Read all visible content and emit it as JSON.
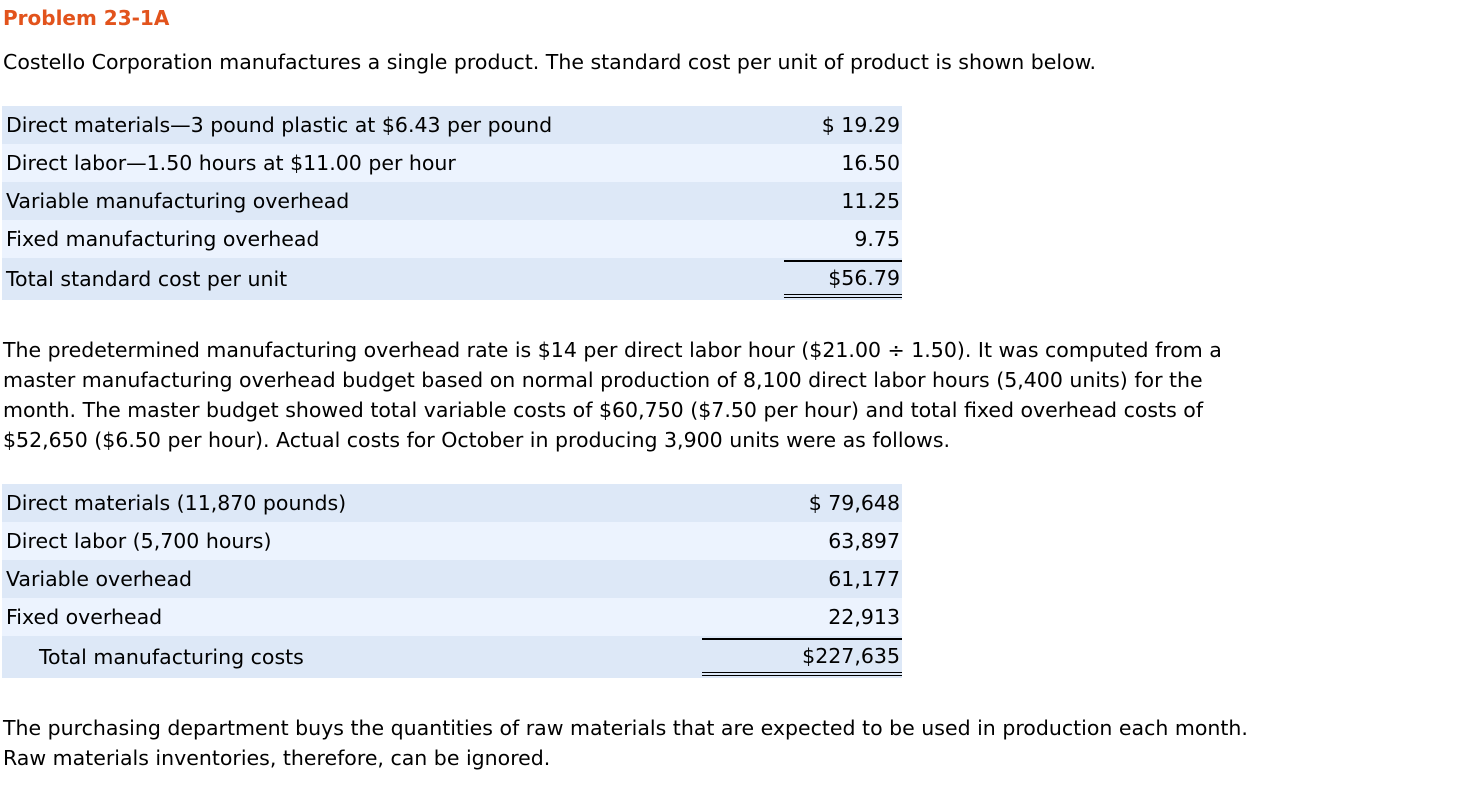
{
  "header": {
    "title": "Problem 23-1A"
  },
  "intro": "Costello Corporation manufactures a single product. The standard cost per unit of product is shown below.",
  "standard_cost_table": {
    "rows": [
      {
        "label": "Direct materials—3 pound plastic at $6.43 per pound",
        "amount": "$ 19.29"
      },
      {
        "label": "Direct labor—1.50 hours at $11.00 per hour",
        "amount": "16.50"
      },
      {
        "label": "Variable manufacturing overhead",
        "amount": "11.25"
      },
      {
        "label": "Fixed manufacturing overhead",
        "amount": "9.75"
      }
    ],
    "total": {
      "label": "Total standard cost per unit",
      "amount": "$56.79"
    }
  },
  "overhead_paragraph": {
    "lines": [
      "The predetermined manufacturing overhead rate is $14 per direct labor hour ($21.00 ÷ 1.50). It was computed from a",
      "master manufacturing overhead budget based on normal production of 8,100 direct labor hours (5,400 units) for the",
      "month. The master budget showed total variable costs of $60,750 ($7.50 per hour) and total fixed overhead costs of",
      "$52,650 ($6.50 per hour). Actual costs for October in producing 3,900 units were as follows."
    ]
  },
  "actual_cost_table": {
    "rows": [
      {
        "label": "Direct materials (11,870 pounds)",
        "amount": "$ 79,648"
      },
      {
        "label": "Direct labor (5,700 hours)",
        "amount": "63,897"
      },
      {
        "label": "Variable overhead",
        "amount": "61,177"
      },
      {
        "label": "Fixed overhead",
        "amount": "22,913"
      }
    ],
    "total": {
      "label": "Total manufacturing costs",
      "amount": "$227,635"
    }
  },
  "purchasing_paragraph": {
    "lines": [
      "The purchasing department buys the quantities of raw materials that are expected to be used in production each month.",
      "Raw materials inventories, therefore, can be ignored."
    ]
  },
  "colors": {
    "title": "#e2531c",
    "row_dark": "#dde8f7",
    "row_light": "#ecf3fe",
    "text": "#000000"
  }
}
